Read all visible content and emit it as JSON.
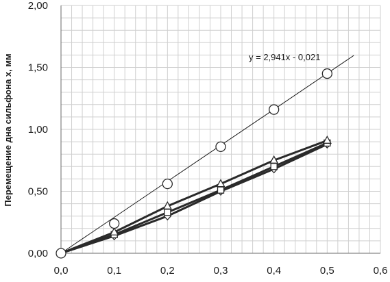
{
  "chart_data": {
    "type": "scatter",
    "title": "",
    "xlabel": "",
    "ylabel": "Перемещение  дна  сильфона x, мм",
    "xlim": [
      0.0,
      0.6
    ],
    "ylim": [
      0.0,
      2.0
    ],
    "x_ticks": [
      0.0,
      0.1,
      0.2,
      0.3,
      0.4,
      0.5,
      0.6
    ],
    "y_ticks": [
      0.0,
      0.5,
      1.0,
      1.5,
      2.0
    ],
    "x_tick_labels": [
      "0,0",
      "0,1",
      "0,2",
      "0,3",
      "0,4",
      "0,5",
      "0,6"
    ],
    "y_tick_labels": [
      "0,00",
      "0,50",
      "1,00",
      "1,50",
      "2,00"
    ],
    "grid": true,
    "series": [
      {
        "marker": "circle",
        "connect": false,
        "x": [
          0.0,
          0.1,
          0.2,
          0.3,
          0.4,
          0.5
        ],
        "y": [
          0.0,
          0.24,
          0.56,
          0.86,
          1.16,
          1.45
        ]
      },
      {
        "marker": "triangle",
        "connect": true,
        "x": [
          0.0,
          0.1,
          0.2,
          0.3,
          0.4,
          0.5
        ],
        "y": [
          0.0,
          0.17,
          0.38,
          0.56,
          0.75,
          0.91
        ]
      },
      {
        "marker": "square",
        "connect": true,
        "x": [
          0.0,
          0.1,
          0.2,
          0.3,
          0.4,
          0.5
        ],
        "y": [
          0.0,
          0.15,
          0.33,
          0.51,
          0.7,
          0.89
        ]
      },
      {
        "marker": "diamond",
        "connect": true,
        "x": [
          0.0,
          0.1,
          0.2,
          0.3,
          0.4,
          0.5
        ],
        "y": [
          0.0,
          0.14,
          0.3,
          0.5,
          0.68,
          0.88
        ]
      }
    ],
    "trendline": {
      "x": [
        0.0,
        0.55
      ],
      "slope": 2.941,
      "intercept": -0.021,
      "label": "y = 2,941x - 0,021"
    }
  }
}
